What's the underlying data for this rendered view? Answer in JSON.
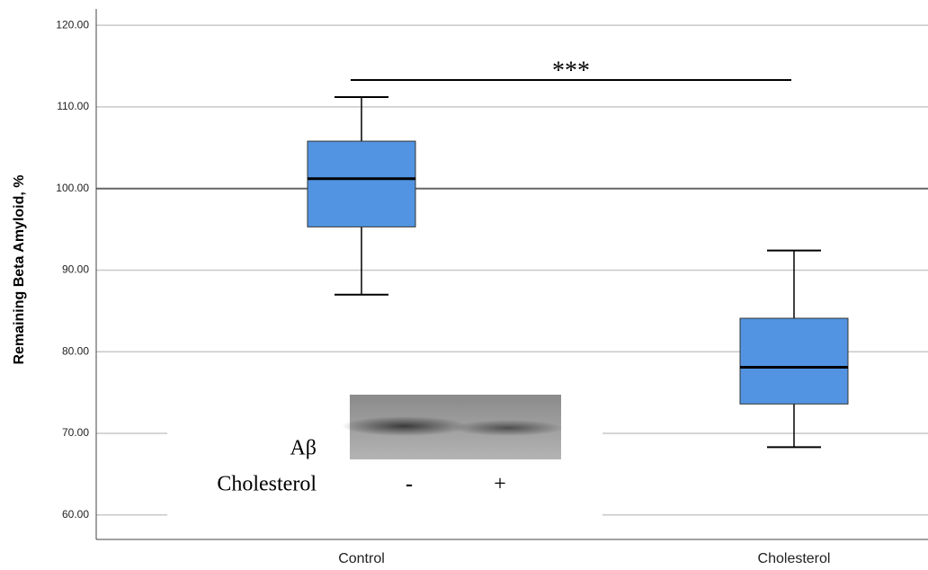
{
  "chart_data": {
    "type": "box",
    "ylabel": "Remaining Beta Amyloid, %",
    "categories": [
      "Control",
      "Cholesterol"
    ],
    "color": "#5294e2",
    "boxes": [
      {
        "low": 87.0,
        "q1": 95.3,
        "median": 101.2,
        "q3": 105.8,
        "high": 111.2
      },
      {
        "low": 68.3,
        "q1": 73.6,
        "median": 78.1,
        "q3": 84.1,
        "high": 92.4
      }
    ],
    "reference_line": 100,
    "significance": {
      "label": "***",
      "value": 113.3
    },
    "ylim": [
      57,
      122
    ],
    "yticks": [
      {
        "value": 60,
        "label": "60.00"
      },
      {
        "value": 70,
        "label": "70.00"
      },
      {
        "value": 80,
        "label": "80.00"
      },
      {
        "value": 90,
        "label": "90.00"
      },
      {
        "value": 100,
        "label": "100.00"
      },
      {
        "value": 110,
        "label": "110.00"
      },
      {
        "value": 120,
        "label": "120.00"
      }
    ],
    "grid": true,
    "inset": {
      "row_labels": [
        "Aβ",
        "Cholesterol"
      ],
      "lane_labels": [
        "-",
        "+"
      ]
    }
  }
}
